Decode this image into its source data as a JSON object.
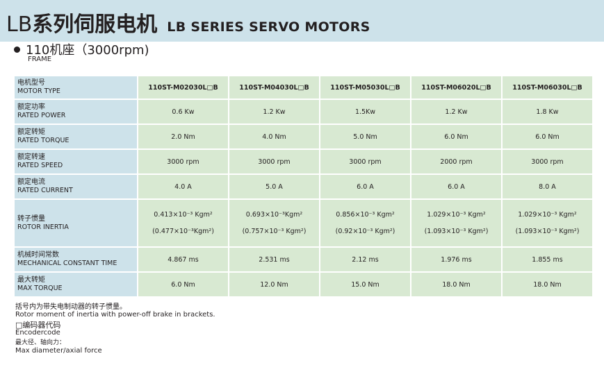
{
  "header": {
    "title_prefix": "LB",
    "title_cn": "系列伺服电机",
    "title_en": "LB SERIES SERVO MOTORS"
  },
  "section": {
    "title": "110机座（3000rpm)",
    "subtitle": "FRAME"
  },
  "table": {
    "rows": [
      {
        "cn": "电机型号",
        "en": "MOTOR TYPE",
        "values": [
          "110ST-M02030L□B",
          "110ST-M04030L□B",
          "110ST-M05030L□B",
          "110ST-M06020L□B",
          "110ST-M06030L□B"
        ]
      },
      {
        "cn": "额定功率",
        "en": "RATED POWER",
        "values": [
          "0.6 Kw",
          "1.2 Kw",
          "1.5Kw",
          "1.2 Kw",
          "1.8 Kw"
        ]
      },
      {
        "cn": "额定转矩",
        "en": "RATED TORQUE",
        "values": [
          "2.0 Nm",
          "4.0 Nm",
          "5.0 Nm",
          "6.0 Nm",
          "6.0 Nm"
        ]
      },
      {
        "cn": "额定转速",
        "en": "RATED SPEED",
        "values": [
          "3000 rpm",
          "3000 rpm",
          "3000 rpm",
          "2000 rpm",
          "3000 rpm"
        ]
      },
      {
        "cn": "额定电流",
        "en": "RATED CURRENT",
        "values": [
          "4.0 A",
          "5.0 A",
          "6.0 A",
          "6.0 A",
          "8.0 A"
        ]
      }
    ],
    "inertia": {
      "cn": "转子惯量",
      "en": "ROTOR INERTIA",
      "values": [
        {
          "main": "0.413×10⁻³ Kgm²",
          "brake": "(0.477×10⁻³Kgm²)"
        },
        {
          "main": "0.693×10⁻³Kgm²",
          "brake": "(0.757×10⁻³ Kgm²)"
        },
        {
          "main": "0.856×10⁻³ Kgm²",
          "brake": "(0.92×10⁻³ Kgm²)"
        },
        {
          "main": "1.029×10⁻³ Kgm²",
          "brake": "(1.093×10⁻³ Kgm²)"
        },
        {
          "main": "1.029×10⁻³ Kgm²",
          "brake": "(1.093×10⁻³ Kgm²)"
        }
      ]
    },
    "rows2": [
      {
        "cn": "机械时间常数",
        "en": "MECHANICAL CONSTANT TIME",
        "values": [
          "4.867 ms",
          "2.531 ms",
          "2.12 ms",
          "1.976 ms",
          "1.855 ms"
        ]
      },
      {
        "cn": "最大转矩",
        "en": "MAX TORQUE",
        "values": [
          "6.0 Nm",
          "12.0 Nm",
          "15.0 Nm",
          "18.0 Nm",
          "18.0 Nm"
        ]
      }
    ]
  },
  "notes": {
    "brake_cn": "括号内为带失电制动器的转子惯量。",
    "brake_en": "Rotor moment of inertia with power-off brake in brackets.",
    "encoder_cn": "□编码器代码",
    "encoder_en": "Encodercode",
    "force_cn": "最大径、轴向力：",
    "force_en": "Max diameter/axial force"
  },
  "colors": {
    "band": "#cde2ea",
    "label_cell": "#cde2ea",
    "value_cell": "#d8e9d2"
  }
}
